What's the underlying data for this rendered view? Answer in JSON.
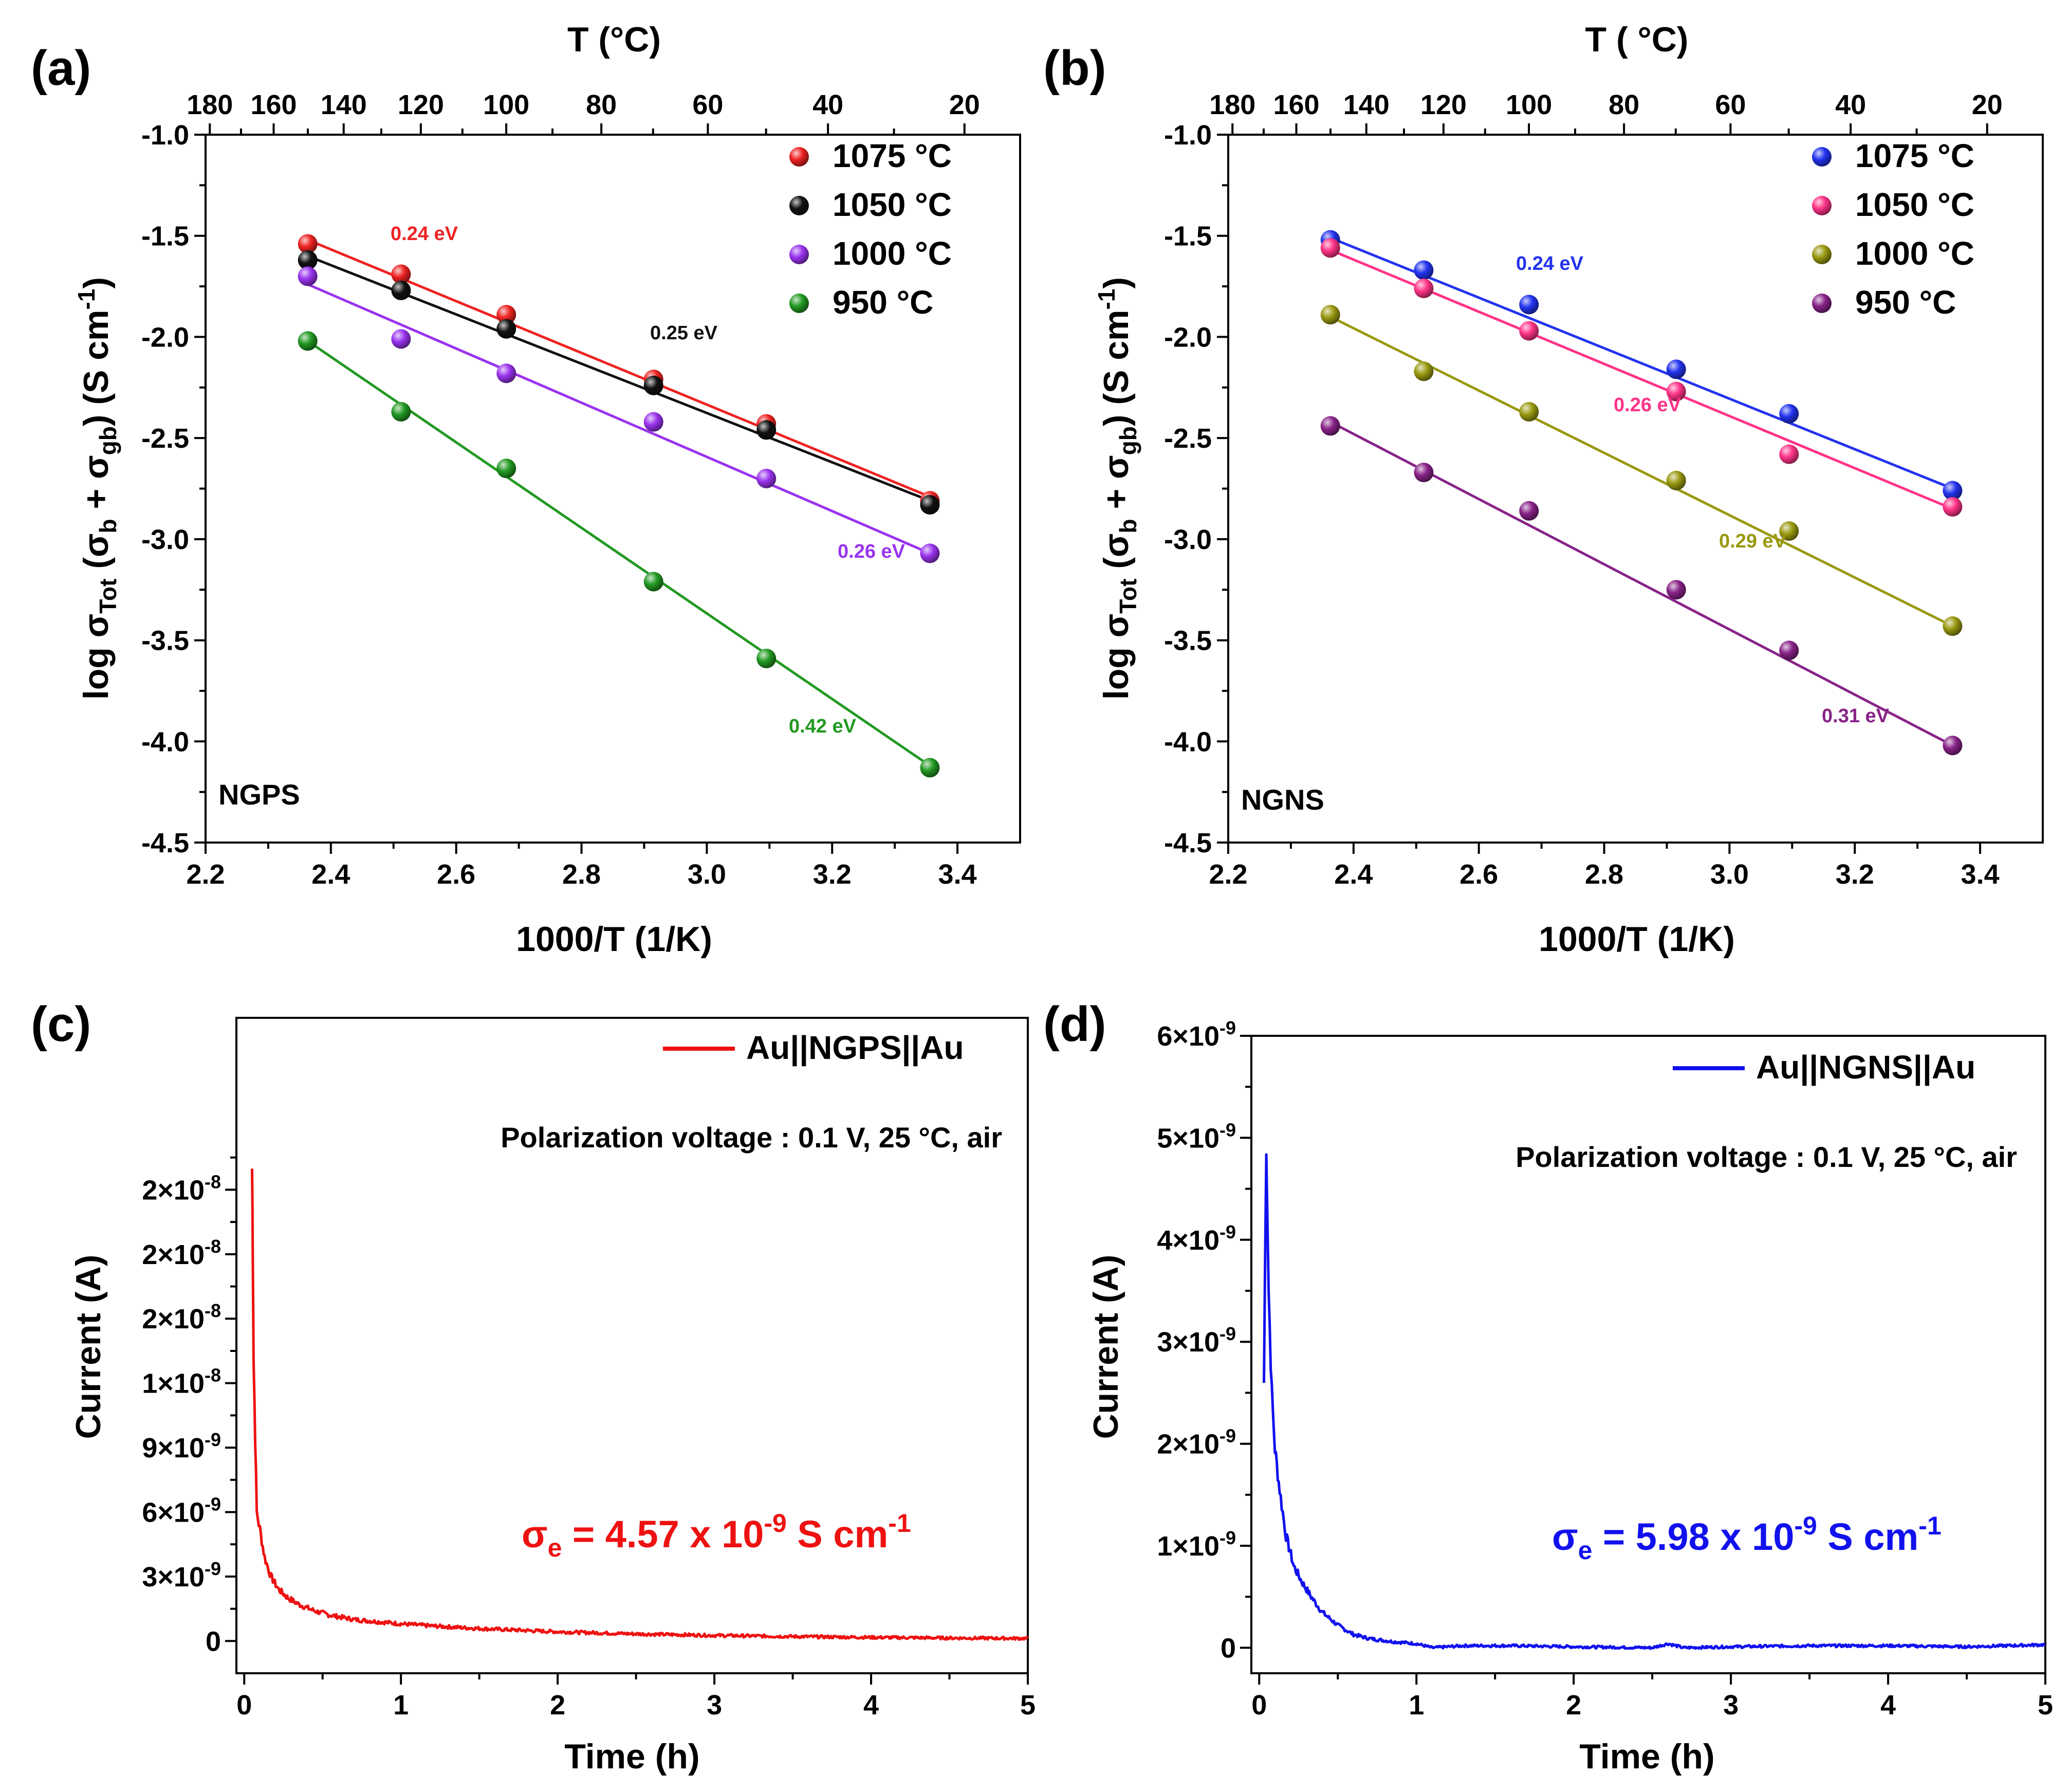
{
  "chart_data": [
    {
      "id": "a",
      "type": "scatter",
      "panel_label": "(a)",
      "sample_label": "NGPS",
      "xlabel": "1000/T (1/K)",
      "ylabel": "log σTot (σb + σgb) (S cm-1)",
      "top_xlabel": "T (°C)",
      "xlim": [
        2.2,
        3.5
      ],
      "ylim": [
        -4.5,
        -1.0
      ],
      "x_ticks": [
        2.2,
        2.4,
        2.6,
        2.8,
        3.0,
        3.2,
        3.4
      ],
      "x_tick_labels": [
        "2.2",
        "2.4",
        "2.6",
        "2.8",
        "3.0",
        "3.2",
        "3.4"
      ],
      "y_ticks": [
        -1.0,
        -1.5,
        -2.0,
        -2.5,
        -3.0,
        -3.5,
        -4.0,
        -4.5
      ],
      "y_tick_labels": [
        "-1.0",
        "-1.5",
        "-2.0",
        "-2.5",
        "-3.0",
        "-3.5",
        "-4.0",
        "-4.5"
      ],
      "top_ticks": [
        180,
        160,
        140,
        120,
        100,
        80,
        60,
        40,
        20
      ],
      "top_tick_labels": [
        "180",
        "160",
        "140",
        "120",
        "100",
        "80",
        "60",
        "40",
        "20"
      ],
      "legend_position": "top-right",
      "x": [
        2.363,
        2.512,
        2.68,
        2.915,
        3.095,
        3.356
      ],
      "series": [
        {
          "name": "1075 °C",
          "color": "#ee2222",
          "values": [
            -1.54,
            -1.69,
            -1.89,
            -2.21,
            -2.43,
            -2.81
          ],
          "fit": [
            -1.52,
            -2.79
          ],
          "energy": "0.24 eV"
        },
        {
          "name": "1050 °C",
          "color": "#111111",
          "values": [
            -1.62,
            -1.77,
            -1.96,
            -2.24,
            -2.46,
            -2.83
          ],
          "fit": [
            -1.6,
            -2.81
          ],
          "energy": "0.25 eV"
        },
        {
          "name": "1000 °C",
          "color": "#9933ee",
          "values": [
            -1.7,
            -2.01,
            -2.18,
            -2.42,
            -2.7,
            -3.07
          ],
          "fit": [
            -1.74,
            -3.07
          ],
          "energy": "0.26 eV"
        },
        {
          "name": "950 °C",
          "color": "#229922",
          "values": [
            -2.02,
            -2.37,
            -2.65,
            -3.21,
            -3.59,
            -4.13
          ],
          "fit": [
            -2.02,
            -4.12
          ],
          "energy": "0.42 eV"
        }
      ]
    },
    {
      "id": "b",
      "type": "scatter",
      "panel_label": "(b)",
      "sample_label": "NGNS",
      "xlabel": "1000/T (1/K)",
      "ylabel": "log σTot (σb + σgb) (S cm-1)",
      "top_xlabel": "T ( °C)",
      "xlim": [
        2.2,
        3.5
      ],
      "ylim": [
        -4.5,
        -1.0
      ],
      "x_ticks": [
        2.2,
        2.4,
        2.6,
        2.8,
        3.0,
        3.2,
        3.4
      ],
      "x_tick_labels": [
        "2.2",
        "2.4",
        "2.6",
        "2.8",
        "3.0",
        "3.2",
        "3.4"
      ],
      "y_ticks": [
        -1.0,
        -1.5,
        -2.0,
        -2.5,
        -3.0,
        -3.5,
        -4.0,
        -4.5
      ],
      "y_tick_labels": [
        "-1.0",
        "-1.5",
        "-2.0",
        "-2.5",
        "-3.0",
        "-3.5",
        "-4.0",
        "-4.5"
      ],
      "top_ticks": [
        180,
        160,
        140,
        120,
        100,
        80,
        60,
        40,
        20
      ],
      "top_tick_labels": [
        "180",
        "160",
        "140",
        "120",
        "100",
        "80",
        "60",
        "40",
        "20"
      ],
      "legend_position": "top-right",
      "x": [
        2.363,
        2.512,
        2.68,
        2.915,
        3.095,
        3.356
      ],
      "series": [
        {
          "name": "1075 °C",
          "color": "#2233ee",
          "values": [
            -1.52,
            -1.67,
            -1.84,
            -2.16,
            -2.38,
            -2.76
          ],
          "fit": [
            -1.51,
            -2.75
          ],
          "energy": "0.24 eV"
        },
        {
          "name": "1050 °C",
          "color": "#ff3388",
          "values": [
            -1.56,
            -1.76,
            -1.97,
            -2.27,
            -2.58,
            -2.84
          ],
          "fit": [
            -1.57,
            -2.85
          ],
          "energy": "0.26 eV"
        },
        {
          "name": "1000 °C",
          "color": "#999911",
          "values": [
            -1.89,
            -2.17,
            -2.37,
            -2.71,
            -2.96,
            -3.43
          ],
          "fit": [
            -1.9,
            -3.43
          ],
          "energy": "0.29 eV"
        },
        {
          "name": "950 °C",
          "color": "#882288",
          "values": [
            -2.44,
            -2.67,
            -2.86,
            -3.25,
            -3.55,
            -4.02
          ],
          "fit": [
            -2.42,
            -4.02
          ],
          "energy": "0.31 eV"
        }
      ]
    },
    {
      "id": "c",
      "type": "line",
      "panel_label": "(c)",
      "xlabel": "Time (h)",
      "ylabel": "Current (A)",
      "xlim": [
        -0.05,
        5.0
      ],
      "ylim": [
        -1.5e-09,
        2.9e-08
      ],
      "x_ticks": [
        0,
        1,
        2,
        3,
        4,
        5
      ],
      "x_tick_labels": [
        "0",
        "1",
        "2",
        "3",
        "4",
        "5"
      ],
      "y_ticks": [
        0,
        3e-09,
        6e-09,
        9e-09,
        1.2e-08,
        1.5e-08,
        1.8e-08,
        2.1e-08
      ],
      "y_tick_labels": [
        "0",
        "3×10-9",
        "6×10-9",
        "9×10-9",
        "1×10-8",
        "2×10-8",
        "2×10-8",
        "2×10-8"
      ],
      "legend_position": "top-right",
      "note": "Polarization voltage : 0.1 V, 25 °C, air",
      "conductivity": "σe = 4.57 x 10-9 S cm-1",
      "series": [
        {
          "name": "Au||NGPS||Au",
          "color": "#ee1111",
          "x": [
            0.05,
            0.055,
            0.06,
            0.07,
            0.08,
            0.1,
            0.13,
            0.17,
            0.22,
            0.28,
            0.35,
            0.45,
            0.55,
            0.7,
            0.85,
            1.0,
            1.2,
            1.5,
            2.0,
            2.5,
            3.0,
            3.5,
            4.0,
            4.5,
            5.0
          ],
          "values": [
            2.2e-08,
            1.8e-08,
            1.3e-08,
            9.5e-09,
            6e-09,
            5.2e-09,
            3.9e-09,
            3e-09,
            2.4e-09,
            2e-09,
            1.7e-09,
            1.4e-09,
            1.2e-09,
            1e-09,
            9e-10,
            8e-10,
            7e-10,
            5.8e-10,
            4.3e-10,
            3.3e-10,
            2.6e-10,
            2.1e-10,
            1.7e-10,
            1.4e-10,
            1.2e-10
          ]
        }
      ]
    },
    {
      "id": "d",
      "type": "line",
      "panel_label": "(d)",
      "xlabel": "Time (h)",
      "ylabel": "Current (A)",
      "xlim": [
        -0.05,
        5.0
      ],
      "ylim": [
        -2.5e-10,
        6e-09
      ],
      "x_ticks": [
        0,
        1,
        2,
        3,
        4,
        5
      ],
      "x_tick_labels": [
        "0",
        "1",
        "2",
        "3",
        "4",
        "5"
      ],
      "y_ticks": [
        0,
        1e-09,
        2e-09,
        3e-09,
        4e-09,
        5e-09,
        6e-09
      ],
      "y_tick_labels": [
        "0",
        "1×10-9",
        "2×10-9",
        "3×10-9",
        "4×10-9",
        "5×10-9",
        "6×10-9"
      ],
      "legend_position": "top-right",
      "note": "Polarization voltage : 0.1 V, 25 °C, air",
      "conductivity": "σe = 5.98 x 10-9 S cm-1",
      "series": [
        {
          "name": "Au||NGNS||Au",
          "color": "#1111ee",
          "x": [
            0.03,
            0.045,
            0.06,
            0.08,
            0.1,
            0.13,
            0.17,
            0.22,
            0.27,
            0.33,
            0.4,
            0.5,
            0.6,
            0.7,
            0.85,
            1.0,
            1.1,
            1.3,
            1.6,
            2.0,
            2.5,
            2.6,
            2.7,
            3.0,
            3.5,
            4.0,
            4.5,
            5.0
          ],
          "values": [
            2.6e-09,
            5e-09,
            3.5e-09,
            2.5e-09,
            1.95e-09,
            1.55e-09,
            1.1e-09,
            8e-10,
            6.5e-10,
            5e-10,
            3.5e-10,
            2.2e-10,
            1.3e-10,
            9e-11,
            6e-11,
            4e-11,
            0.0,
            2e-11,
            2e-11,
            1e-11,
            0.0,
            4e-11,
            0.0,
            1e-11,
            2e-11,
            2e-11,
            1e-11,
            3e-11
          ]
        }
      ]
    }
  ]
}
